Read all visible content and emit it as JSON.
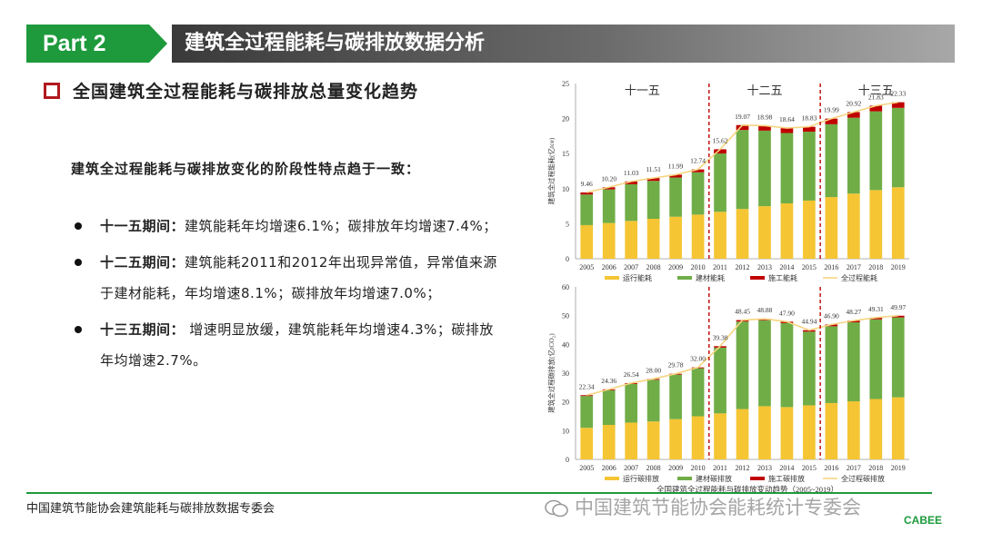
{
  "header": {
    "part_label": "Part 2",
    "title": "建筑全过程能耗与碳排放数据分析"
  },
  "section": {
    "title": "全国建筑全过程能耗与碳排放总量变化趋势"
  },
  "lead": "建筑全过程能耗与碳排放变化的阶段性特点趋于一致：",
  "bullets": [
    {
      "head": "十一五期间：",
      "body": "建筑能耗年均增速6.1%；碳排放年均增速7.4%；"
    },
    {
      "head": "十二五期间：",
      "body": "建筑能耗2011和2012年出现异常值，异常值来源于建材能耗，年均增速8.1%；碳排放年均增速7.0%；"
    },
    {
      "head": "十三五期间：",
      "body": " 增速明显放缓，建筑能耗年均增速4.3%；碳排放年均增速2.7%。"
    }
  ],
  "footer": {
    "org": "中国建筑节能协会建筑能耗与碳排放数据专委会",
    "watermark": "中国建筑节能协会能耗统计专委会",
    "logo": "CABEE"
  },
  "colors": {
    "green": "#1e9a3c",
    "operation": "#f5c533",
    "material": "#70ad47",
    "construction": "#c00000",
    "total_line": "#f6d580",
    "divider": "#c00000"
  },
  "chart_data": [
    {
      "type": "bar",
      "stacked": true,
      "categories": [
        "2005",
        "2006",
        "2007",
        "2008",
        "2009",
        "2010",
        "2011",
        "2012",
        "2013",
        "2014",
        "2015",
        "2016",
        "2017",
        "2018",
        "2019"
      ],
      "period_labels": [
        "十一五",
        "十二五",
        "十三五"
      ],
      "ylabel": "建筑全过程能耗(亿tce)",
      "ylim": [
        0,
        25
      ],
      "yticks": [
        0,
        5,
        10,
        15,
        20,
        25
      ],
      "series": [
        {
          "name": "运行能耗",
          "values": [
            4.8,
            5.1,
            5.4,
            5.7,
            6.0,
            6.3,
            6.7,
            7.1,
            7.5,
            7.9,
            8.3,
            8.8,
            9.3,
            9.8,
            10.2
          ]
        },
        {
          "name": "建材能耗",
          "values": [
            4.36,
            4.8,
            5.23,
            5.41,
            5.59,
            6.04,
            8.32,
            11.27,
            10.78,
            10.04,
            9.83,
            10.39,
            10.82,
            11.23,
            11.33
          ]
        },
        {
          "name": "施工能耗",
          "values": [
            0.3,
            0.3,
            0.4,
            0.4,
            0.4,
            0.4,
            0.6,
            0.7,
            0.7,
            0.7,
            0.7,
            0.8,
            0.8,
            0.8,
            0.8
          ]
        }
      ],
      "line": {
        "name": "全过程能耗",
        "values": [
          9.46,
          10.2,
          11.03,
          11.51,
          11.99,
          12.74,
          15.62,
          19.07,
          18.98,
          18.64,
          18.83,
          19.99,
          20.92,
          21.83,
          22.33
        ]
      },
      "grid": false,
      "legend": "bottom"
    },
    {
      "type": "bar",
      "stacked": true,
      "categories": [
        "2005",
        "2006",
        "2007",
        "2008",
        "2009",
        "2010",
        "2011",
        "2012",
        "2013",
        "2014",
        "2015",
        "2016",
        "2017",
        "2018",
        "2019"
      ],
      "ylabel": "建筑全过程碳排放(亿tCO₂)",
      "ylim": [
        0,
        60
      ],
      "yticks": [
        0,
        10,
        20,
        30,
        40,
        50,
        60
      ],
      "series": [
        {
          "name": "运行碳排放",
          "values": [
            11.0,
            12.0,
            12.8,
            13.2,
            14.0,
            15.0,
            16.0,
            17.5,
            18.5,
            18.2,
            18.8,
            19.6,
            20.2,
            21.0,
            21.6
          ]
        },
        {
          "name": "建材碳排放",
          "values": [
            11.04,
            12.06,
            13.44,
            14.5,
            15.48,
            16.7,
            22.88,
            30.45,
            29.88,
            29.2,
            25.64,
            26.7,
            27.47,
            27.71,
            27.77
          ]
        },
        {
          "name": "施工碳排放",
          "values": [
            0.3,
            0.3,
            0.3,
            0.3,
            0.3,
            0.3,
            0.5,
            0.5,
            0.5,
            0.5,
            0.5,
            0.6,
            0.6,
            0.6,
            0.6
          ]
        }
      ],
      "line": {
        "name": "全过程碳排放",
        "values": [
          22.34,
          24.36,
          26.54,
          28.0,
          29.78,
          32.0,
          39.38,
          48.45,
          48.88,
          47.9,
          44.94,
          46.9,
          48.27,
          49.31,
          49.97
        ]
      },
      "grid": false,
      "legend": "bottom",
      "caption": "全国建筑全过程能耗与碳排放变动趋势（2005~2019）"
    }
  ]
}
